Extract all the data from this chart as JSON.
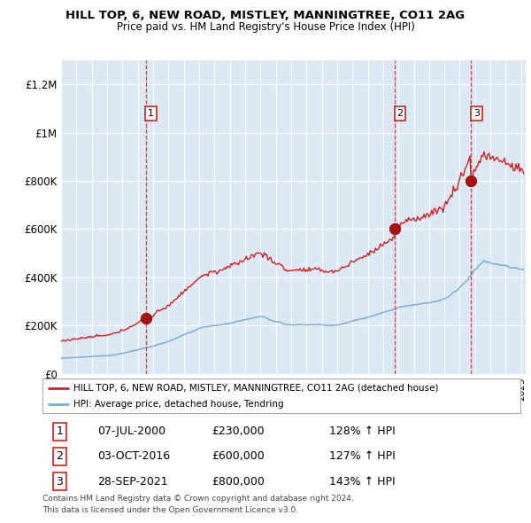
{
  "title": "HILL TOP, 6, NEW ROAD, MISTLEY, MANNINGTREE, CO11 2AG",
  "subtitle": "Price paid vs. HM Land Registry's House Price Index (HPI)",
  "ylim": [
    0,
    1300000
  ],
  "yticks": [
    0,
    200000,
    400000,
    600000,
    800000,
    1000000,
    1200000
  ],
  "ytick_labels": [
    "£0",
    "£200K",
    "£400K",
    "£600K",
    "£800K",
    "£1M",
    "£1.2M"
  ],
  "xlim_start": 1995.0,
  "xlim_end": 2025.3,
  "hpi_color": "#7aaed4",
  "price_color": "#cc2222",
  "bg_color": "#dce9f5",
  "sale_dates": [
    2000.52,
    2016.75,
    2021.74
  ],
  "sale_prices": [
    230000,
    600000,
    800000
  ],
  "sale_labels": [
    "1",
    "2",
    "3"
  ],
  "footnote1": "Contains HM Land Registry data © Crown copyright and database right 2024.",
  "footnote2": "This data is licensed under the Open Government Licence v3.0.",
  "legend_line1": "HILL TOP, 6, NEW ROAD, MISTLEY, MANNINGTREE, CO11 2AG (detached house)",
  "legend_line2": "HPI: Average price, detached house, Tendring",
  "table_data": [
    [
      "1",
      "07-JUL-2000",
      "£230,000",
      "128% ↑ HPI"
    ],
    [
      "2",
      "03-OCT-2016",
      "£600,000",
      "127% ↑ HPI"
    ],
    [
      "3",
      "28-SEP-2021",
      "£800,000",
      "143% ↑ HPI"
    ]
  ]
}
